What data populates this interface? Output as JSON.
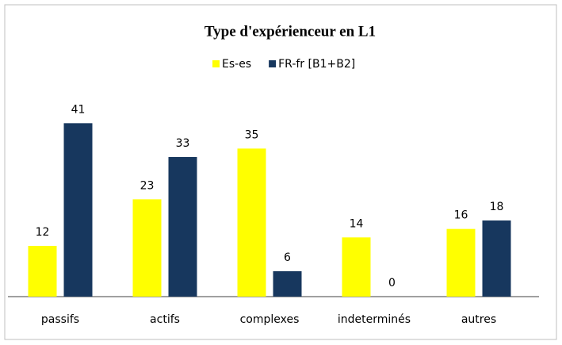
{
  "chart_data": {
    "type": "bar",
    "title": "Type d'expérienceur en L1",
    "categories": [
      "passifs",
      "actifs",
      "complexes",
      "indeterminés",
      "autres"
    ],
    "series": [
      {
        "name": "Es-es",
        "color": "#ffff00",
        "values": [
          12,
          23,
          35,
          14,
          16
        ]
      },
      {
        "name": "FR-fr [B1+B2]",
        "color": "#17375e",
        "values": [
          41,
          33,
          6,
          0,
          18
        ]
      }
    ],
    "ylim": [
      0,
      45
    ]
  }
}
